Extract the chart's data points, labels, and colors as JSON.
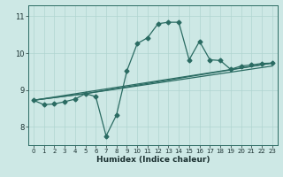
{
  "title": "",
  "xlabel": "Humidex (Indice chaleur)",
  "ylabel": "",
  "background_color": "#cde8e5",
  "grid_color": "#b0d4d0",
  "line_color": "#2a6b62",
  "xlim": [
    -0.5,
    23.5
  ],
  "ylim": [
    7.5,
    11.3
  ],
  "yticks": [
    8,
    9,
    10,
    11
  ],
  "xticks": [
    0,
    1,
    2,
    3,
    4,
    5,
    6,
    7,
    8,
    9,
    10,
    11,
    12,
    13,
    14,
    15,
    16,
    17,
    18,
    19,
    20,
    21,
    22,
    23
  ],
  "line1_x": [
    0,
    1,
    2,
    3,
    4,
    5,
    6,
    7,
    8,
    9,
    10,
    11,
    12,
    13,
    14,
    15,
    16,
    17,
    18,
    19,
    20,
    21,
    22,
    23
  ],
  "line1_y": [
    8.72,
    8.6,
    8.62,
    8.68,
    8.75,
    8.9,
    8.82,
    7.75,
    8.32,
    9.52,
    10.26,
    10.42,
    10.8,
    10.84,
    10.84,
    9.82,
    10.32,
    9.82,
    9.8,
    9.56,
    9.65,
    9.68,
    9.72,
    9.73
  ],
  "line2_x": [
    0,
    23
  ],
  "line2_y": [
    8.72,
    9.73
  ],
  "line3_x": [
    0,
    5,
    23
  ],
  "line3_y": [
    8.72,
    8.9,
    9.73
  ],
  "line4_x": [
    0,
    5,
    23
  ],
  "line4_y": [
    8.72,
    8.9,
    9.65
  ],
  "marker": "D",
  "markersize": 2.5,
  "linewidth": 0.9
}
